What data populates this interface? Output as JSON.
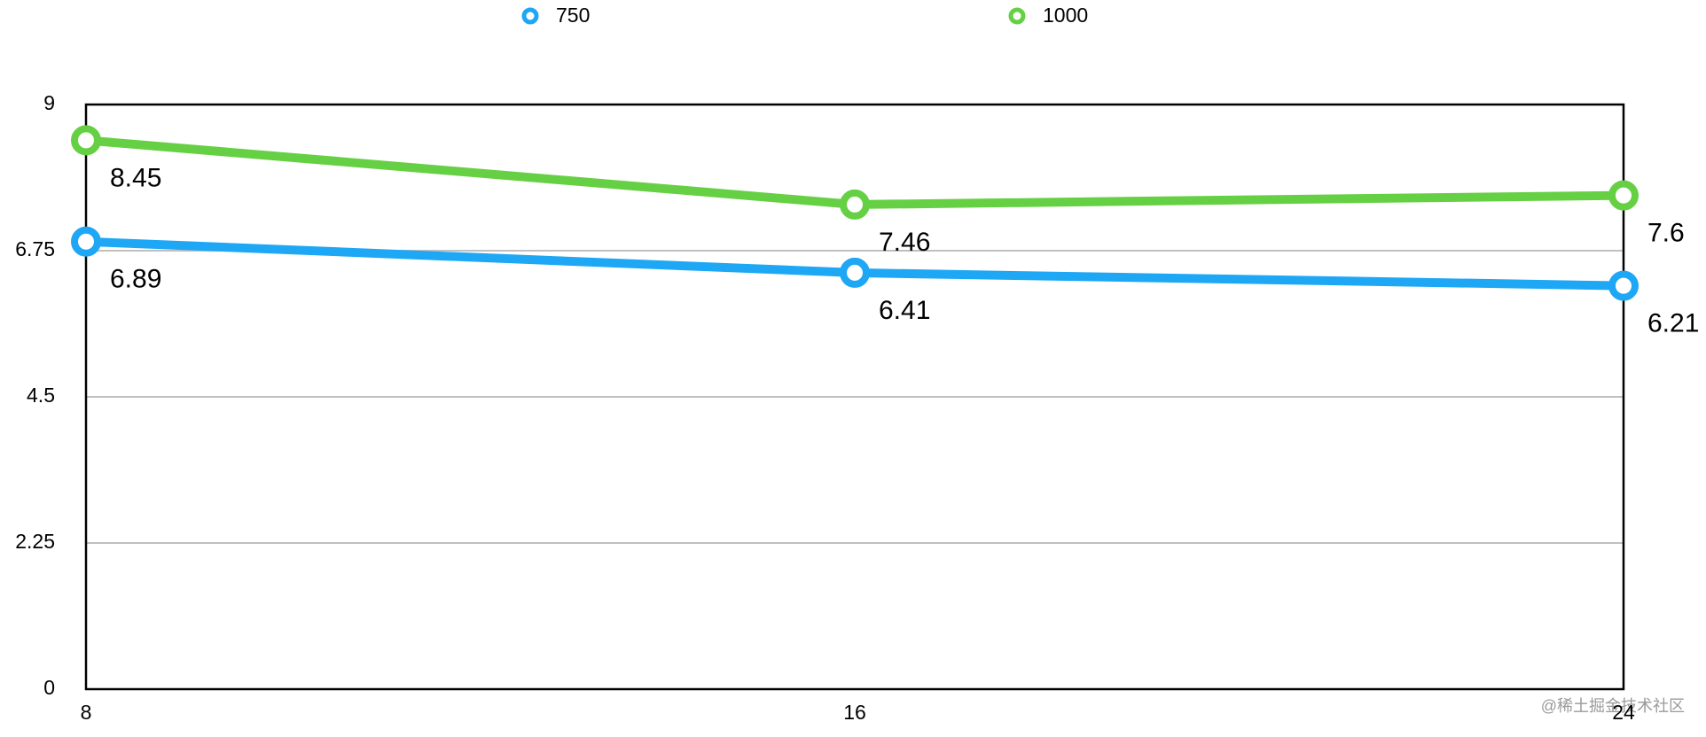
{
  "chart_data": {
    "type": "line",
    "x": [
      8,
      16,
      24
    ],
    "xlim": [
      8,
      24
    ],
    "xticks": [
      8,
      16,
      24
    ],
    "ylim": [
      0,
      9
    ],
    "yticks": [
      0,
      2.25,
      4.5,
      6.75,
      9
    ],
    "grid": true,
    "series": [
      {
        "name": "750",
        "color": "#1ea7f5",
        "values": [
          6.89,
          6.41,
          6.21
        ]
      },
      {
        "name": "1000",
        "color": "#66d044",
        "values": [
          8.45,
          7.46,
          7.6
        ]
      }
    ],
    "watermark": "@稀土掘金技术社区"
  }
}
